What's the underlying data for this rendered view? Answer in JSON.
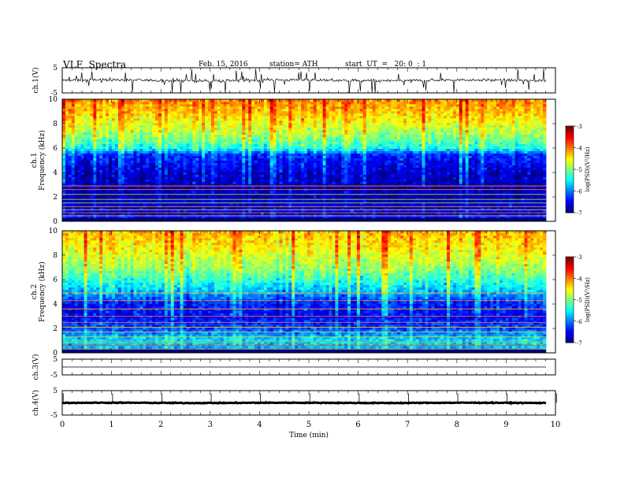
{
  "header": {
    "title": "VLF  Spectra",
    "date": "Feb. 15, 2016",
    "station": "station= ATH",
    "start": "start  UT  =   20: 0  : 1"
  },
  "chart_data": [
    {
      "type": "line",
      "name": "ch1-waveform",
      "ylabel": "ch.1(V)",
      "ylim": [
        -5,
        5
      ],
      "yticks": [
        "5",
        "-5"
      ],
      "baseline_volts": 0,
      "noise_amplitude_volts": 1.2
    },
    {
      "type": "heatmap",
      "name": "ch1-spectrogram",
      "ylabel": "ch.1\nFrequency  (kHz)",
      "ylim": [
        0,
        10
      ],
      "yticks": [
        "10",
        "8",
        "6",
        "4",
        "2",
        "0"
      ],
      "colorbar": {
        "label": "log(PSD)(V²/Hz)",
        "ticks": [
          "-3",
          "-4",
          "-5",
          "-6",
          "-7"
        ],
        "range": [
          -7,
          -3
        ]
      },
      "freq_profile_logpsd": [
        [
          0,
          -6.5
        ],
        [
          2,
          -6.8
        ],
        [
          4,
          -6.7
        ],
        [
          5.5,
          -6.3
        ],
        [
          6,
          -5.4
        ],
        [
          7,
          -4.9
        ],
        [
          8.5,
          -4.4
        ],
        [
          10,
          -4.0
        ]
      ],
      "line_freqs_khz": [
        0.2,
        0.45,
        0.7,
        0.95,
        1.2,
        1.5,
        1.8,
        2.2,
        2.6,
        2.9
      ]
    },
    {
      "type": "heatmap",
      "name": "ch2-spectrogram",
      "ylabel": "ch.2\nFrequency  (kHz)",
      "ylim": [
        0,
        10
      ],
      "yticks": [
        "10",
        "8",
        "6",
        "4",
        "2",
        "0"
      ],
      "colorbar": {
        "label": "log(PSD)(V²/Hz)",
        "ticks": [
          "-3",
          "-4",
          "-5",
          "-6",
          "-7"
        ],
        "range": [
          -7,
          -3
        ]
      },
      "freq_profile_logpsd": [
        [
          0,
          -6.0
        ],
        [
          1,
          -5.6
        ],
        [
          2,
          -6.2
        ],
        [
          3,
          -6.5
        ],
        [
          4,
          -6.4
        ],
        [
          5,
          -5.8
        ],
        [
          6,
          -5.3
        ],
        [
          7,
          -4.9
        ],
        [
          8.5,
          -4.5
        ],
        [
          10,
          -4.2
        ]
      ],
      "line_freqs_khz": [
        0.3,
        0.6,
        0.9,
        1.3,
        1.7,
        2.1,
        2.5,
        3.0,
        3.6,
        4.3,
        4.9
      ]
    },
    {
      "type": "line",
      "name": "ch3-waveform",
      "ylabel": "ch.3(V)",
      "ylim": [
        -5,
        5
      ],
      "yticks": [
        "5",
        "-5"
      ],
      "baseline_volts": 0,
      "noise_amplitude_volts": 0.05
    },
    {
      "type": "line",
      "name": "ch4-waveform",
      "ylabel": "ch.4(V)",
      "ylim": [
        -5,
        5
      ],
      "yticks": [
        "5",
        "-5"
      ],
      "baseline_volts": 0,
      "noise_amplitude_volts": 0.35
    }
  ],
  "xaxis": {
    "label": "Time  (min)",
    "ticks": [
      "0",
      "1",
      "2",
      "3",
      "4",
      "5",
      "6",
      "7",
      "8",
      "9",
      "10"
    ],
    "xlim": [
      0,
      10
    ],
    "data_end_min": 9.82
  }
}
